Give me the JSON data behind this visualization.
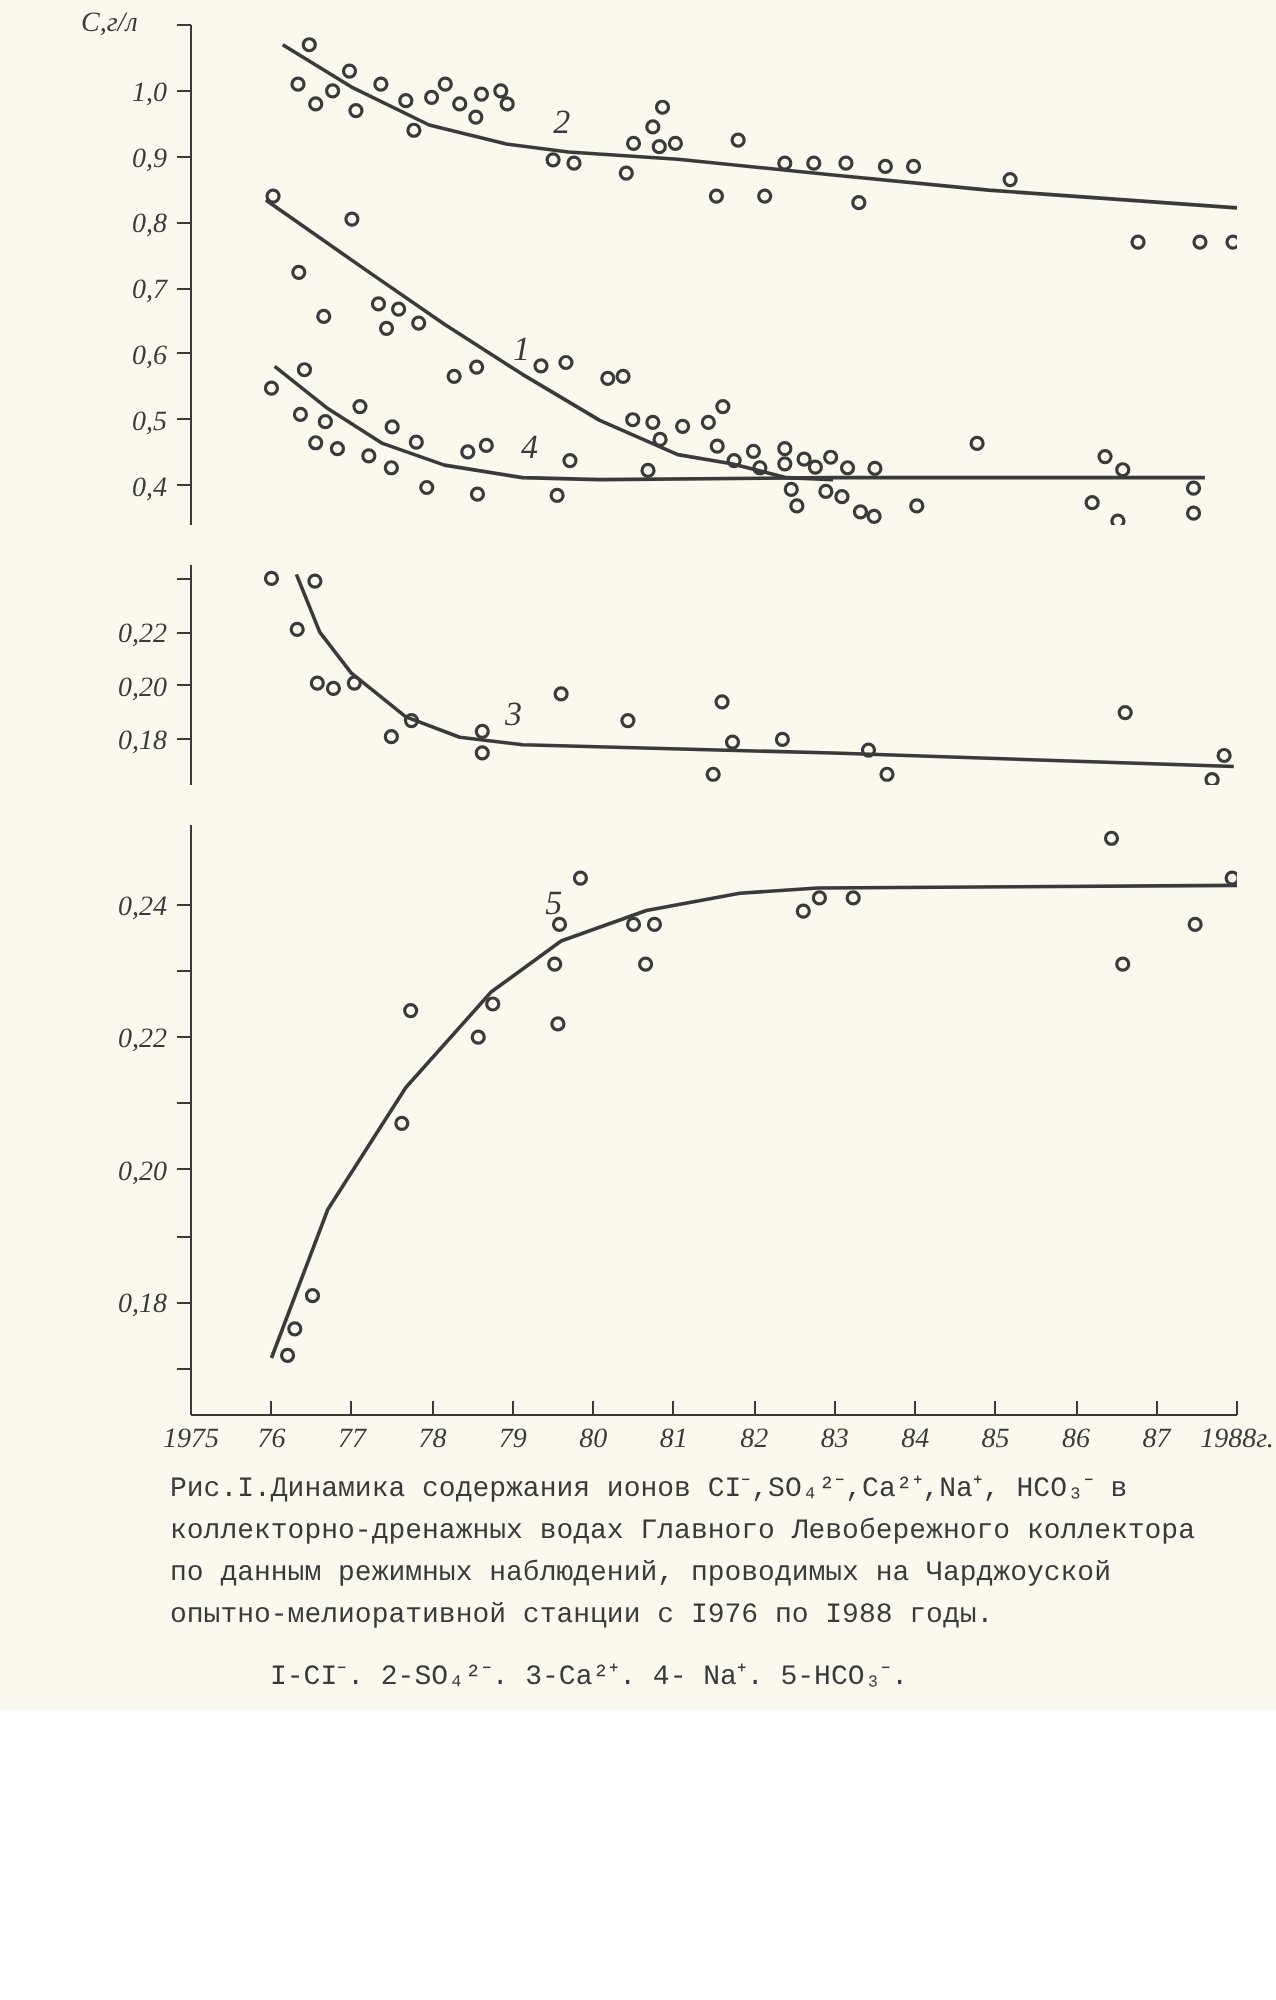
{
  "chart_data": [
    {
      "type": "line",
      "ylabel": "C,г/л",
      "xlim": [
        1975,
        1988
      ],
      "ylim": [
        0.34,
        1.1
      ],
      "grid": false,
      "marker": "circle",
      "tick_labels": "y",
      "yticks": [
        {
          "value": 0.4,
          "label": "0,4"
        },
        {
          "value": 0.5,
          "label": "0,5"
        },
        {
          "value": 0.6,
          "label": "0,6"
        },
        {
          "value": 0.7,
          "label": "0,7"
        },
        {
          "value": 0.8,
          "label": "0,8"
        },
        {
          "value": 0.9,
          "label": "0,9"
        },
        {
          "value": 1.0,
          "label": "1,0"
        },
        {
          "value": 1.1,
          "label": null
        }
      ],
      "series": [
        {
          "type": "scatter",
          "color": "#3a3a3a",
          "x": [
            1976.47,
            1976.33,
            1976.55,
            1976.76,
            1976.97,
            1977.05,
            1977.36,
            1977.67,
            1977.77,
            1977.99,
            1978.16,
            1978.34,
            1978.54,
            1978.61,
            1978.85,
            1978.93,
            1979.5,
            1979.76,
            1980.41,
            1980.5,
            1980.74,
            1980.86,
            1980.82,
            1981.02,
            1981.53,
            1981.8,
            1982.13,
            1982.38,
            1982.74,
            1983.14,
            1983.3,
            1983.63,
            1983.98,
            1985.18,
            1986.77,
            1987.54,
            1987.95
          ],
          "values": [
            1.07,
            1.01,
            0.98,
            1.0,
            1.03,
            0.97,
            1.01,
            0.985,
            0.94,
            0.99,
            1.01,
            0.98,
            0.96,
            0.995,
            1.0,
            0.98,
            0.895,
            0.89,
            0.875,
            0.92,
            0.945,
            0.975,
            0.915,
            0.92,
            0.84,
            0.925,
            0.84,
            0.89,
            0.89,
            0.89,
            0.83,
            0.885,
            0.885,
            0.865,
            0.77,
            0.77,
            0.77
          ]
        },
        {
          "marker": "none",
          "color": "#3a3a3a",
          "x": [
            1976.14,
            1976.99,
            1977.96,
            1978.92,
            1979.69,
            1981.05,
            1982.98,
            1984.91,
            1988.0
          ],
          "values": [
            1.07,
            1.006,
            0.948,
            0.919,
            0.907,
            0.896,
            0.872,
            0.849,
            0.822
          ]
        },
        {
          "type": "scatter",
          "color": "#3a3a3a",
          "x": [
            1976.02,
            1976.34,
            1976.65,
            1977.0,
            1977.33,
            1977.43,
            1977.58,
            1977.83,
            1978.27,
            1978.55,
            1979.35,
            1979.66,
            1980.18,
            1980.37,
            1980.49,
            1980.74,
            1980.83,
            1981.11,
            1981.43,
            1981.61,
            1981.54,
            1981.75,
            1981.99,
            1982.07,
            1982.38,
            1982.38,
            1982.62,
            1982.76,
            1982.95,
            1983.16,
            1983.5,
            1984.77,
            1986.36,
            1986.58
          ],
          "values": [
            0.84,
            0.724,
            0.657,
            0.805,
            0.676,
            0.639,
            0.668,
            0.647,
            0.566,
            0.58,
            0.582,
            0.587,
            0.563,
            0.566,
            0.5,
            0.496,
            0.47,
            0.49,
            0.496,
            0.52,
            0.46,
            0.438,
            0.452,
            0.427,
            0.456,
            0.433,
            0.44,
            0.428,
            0.443,
            0.427,
            0.426,
            0.464,
            0.444,
            0.424
          ]
        },
        {
          "marker": "none",
          "color": "#3a3a3a",
          "x": [
            1975.93,
            1977.18,
            1978.15,
            1979.12,
            1980.08,
            1981.05,
            1981.72,
            1982.4,
            1982.98
          ],
          "values": [
            0.834,
            0.727,
            0.645,
            0.569,
            0.499,
            0.447,
            0.433,
            0.412,
            0.409
          ]
        },
        {
          "type": "scatter",
          "color": "#3a3a3a",
          "x": [
            1976.0,
            1976.41,
            1976.36,
            1976.67,
            1976.55,
            1976.82,
            1977.1,
            1977.21,
            1977.5,
            1977.49,
            1977.8,
            1977.93,
            1978.44,
            1978.67,
            1978.56,
            1979.55,
            1979.71,
            1980.68,
            1982.46,
            1982.53,
            1982.89,
            1983.09,
            1983.32,
            1983.49,
            1984.02,
            1986.2,
            1986.52,
            1987.46,
            1987.46
          ],
          "values": [
            0.548,
            0.576,
            0.508,
            0.497,
            0.465,
            0.456,
            0.52,
            0.445,
            0.489,
            0.427,
            0.466,
            0.397,
            0.451,
            0.461,
            0.387,
            0.385,
            0.438,
            0.423,
            0.394,
            0.369,
            0.391,
            0.383,
            0.36,
            0.353,
            0.369,
            0.374,
            0.346,
            0.396,
            0.358
          ]
        },
        {
          "marker": "none",
          "color": "#3a3a3a",
          "x": [
            1976.04,
            1976.7,
            1977.38,
            1978.15,
            1979.12,
            1980.08,
            1982.98,
            1987.6
          ],
          "values": [
            0.581,
            0.517,
            0.464,
            0.431,
            0.412,
            0.409,
            0.412,
            0.412
          ]
        }
      ],
      "annotations": [
        {
          "text": "2",
          "x": 1979.8,
          "y": 0.905
        },
        {
          "text": "1",
          "x": 1979.3,
          "y": 0.56
        },
        {
          "text": "4",
          "x": 1979.4,
          "y": 0.412
        }
      ]
    },
    {
      "type": "line",
      "xlim": [
        1975,
        1988
      ],
      "ylim": [
        0.163,
        0.245
      ],
      "grid": false,
      "marker": "circle",
      "tick_labels": "y",
      "yticks": [
        {
          "value": 0.18,
          "label": "0,18"
        },
        {
          "value": 0.2,
          "label": "0,20"
        },
        {
          "value": 0.22,
          "label": "0,22"
        },
        {
          "value": 0.24,
          "label": null
        }
      ],
      "series": [
        {
          "type": "scatter",
          "color": "#3a3a3a",
          "x": [
            1976.0,
            1976.54,
            1976.32,
            1976.57,
            1976.77,
            1977.03,
            1977.49,
            1977.74,
            1978.62,
            1978.62,
            1979.6,
            1980.43,
            1981.6,
            1981.49,
            1981.73,
            1982.35,
            1983.42,
            1983.65,
            1986.61,
            1987.84,
            1987.69
          ],
          "values": [
            0.24,
            0.239,
            0.221,
            0.201,
            0.199,
            0.201,
            0.181,
            0.187,
            0.183,
            0.175,
            0.197,
            0.187,
            0.194,
            0.167,
            0.179,
            0.18,
            0.176,
            0.167,
            0.19,
            0.174,
            0.165
          ]
        },
        {
          "marker": "none",
          "color": "#3a3a3a",
          "x": [
            1976.31,
            1976.6,
            1976.99,
            1977.67,
            1978.34,
            1979.12,
            1982.98,
            1987.96
          ],
          "values": [
            0.2415,
            0.22,
            0.2048,
            0.1884,
            0.1808,
            0.178,
            0.1749,
            0.1699
          ]
        }
      ],
      "annotations": [
        {
          "text": "3",
          "x": 1979.2,
          "y": 0.178
        }
      ]
    },
    {
      "type": "line",
      "xlim": [
        1975,
        1988
      ],
      "ylim": [
        0.163,
        0.252
      ],
      "grid": false,
      "marker": "circle",
      "xticks": [
        {
          "value": 1975,
          "label": "1975"
        },
        {
          "value": 1976,
          "label": "76"
        },
        {
          "value": 1977,
          "label": "77"
        },
        {
          "value": 1978,
          "label": "78"
        },
        {
          "value": 1979,
          "label": "79"
        },
        {
          "value": 1980,
          "label": "80"
        },
        {
          "value": 1981,
          "label": "81"
        },
        {
          "value": 1982,
          "label": "82"
        },
        {
          "value": 1983,
          "label": "83"
        },
        {
          "value": 1984,
          "label": "84"
        },
        {
          "value": 1985,
          "label": "85"
        },
        {
          "value": 1986,
          "label": "86"
        },
        {
          "value": 1987,
          "label": "87"
        },
        {
          "value": 1988,
          "label": "1988г."
        }
      ],
      "yticks": [
        {
          "value": 0.17,
          "label": null
        },
        {
          "value": 0.18,
          "label": "0,18"
        },
        {
          "value": 0.19,
          "label": null
        },
        {
          "value": 0.2,
          "label": "0,20"
        },
        {
          "value": 0.21,
          "label": null
        },
        {
          "value": 0.22,
          "label": "0,22"
        },
        {
          "value": 0.23,
          "label": null
        },
        {
          "value": 0.24,
          "label": "0,24"
        }
      ],
      "series": [
        {
          "type": "scatter",
          "color": "#3a3a3a",
          "x": [
            1976.2,
            1976.29,
            1976.51,
            1977.62,
            1977.73,
            1978.57,
            1978.75,
            1979.52,
            1979.58,
            1979.56,
            1979.84,
            1980.5,
            1980.65,
            1980.76,
            1982.61,
            1982.81,
            1983.23,
            1986.44,
            1986.58,
            1987.48,
            1987.94
          ],
          "values": [
            0.172,
            0.176,
            0.181,
            0.207,
            0.224,
            0.22,
            0.225,
            0.231,
            0.237,
            0.222,
            0.244,
            0.237,
            0.231,
            0.237,
            0.239,
            0.241,
            0.241,
            0.25,
            0.231,
            0.237,
            0.244
          ]
        },
        {
          "marker": "none",
          "color": "#3a3a3a",
          "x": [
            1976.0,
            1976.7,
            1977.67,
            1978.73,
            1979.6,
            1980.66,
            1981.82,
            1982.79,
            1988.0
          ],
          "values": [
            0.1716,
            0.194,
            0.2124,
            0.2268,
            0.2345,
            0.2391,
            0.2417,
            0.2425,
            0.2429
          ]
        }
      ],
      "annotations": [
        {
          "text": "5",
          "x": 1979.7,
          "y": 0.2355
        },
        "Рис.I.Динамика содержания ионов CI⁻,SO₄²⁻,Ca²⁺,Na⁺, HCO₃⁻ в коллекторно-дренажных водах Главного Левобережного коллектора по данным режимных наблюдений, проводимых на Чарджоуской опытно-мелиоративной станции с I976 по I988 годы.",
        "I-CI⁻. 2-SO₄²⁻. 3-Ca²⁺. 4- Na⁺. 5-HCO₃⁻."
      ]
    }
  ]
}
